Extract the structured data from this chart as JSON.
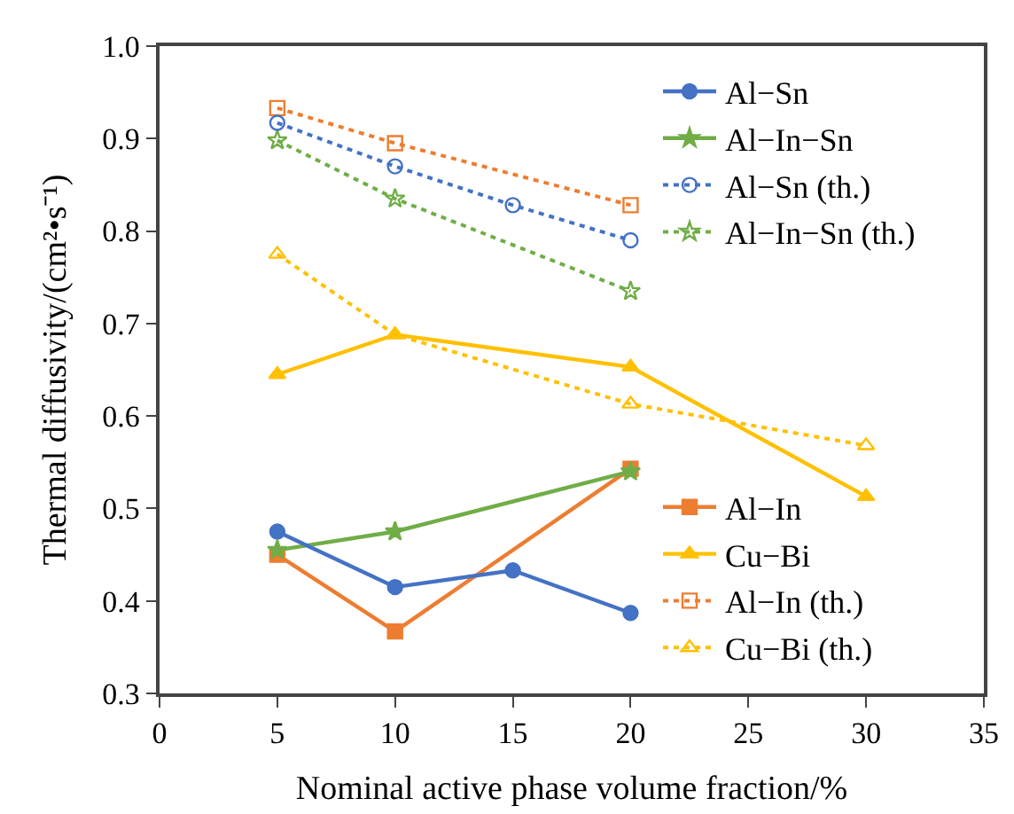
{
  "chart_data": {
    "type": "line",
    "xlabel": "Nominal active phase volume fraction/%",
    "ylabel": "Thermal diffusivity/(cm²•s⁻¹)",
    "xlim": [
      0,
      35
    ],
    "xticks": [
      0,
      5,
      10,
      15,
      20,
      25,
      30,
      35
    ],
    "ylim": [
      0.3,
      1.0
    ],
    "yticks": [
      0.3,
      0.4,
      0.5,
      0.6,
      0.7,
      0.8,
      0.9,
      {
        "value": 1.0,
        "label": "1.0"
      }
    ],
    "legend": "right",
    "series": [
      {
        "name": "Al−Sn",
        "color": "#4472c4",
        "marker": "circle",
        "line_style": "solid",
        "x": [
          5,
          10,
          15,
          20
        ],
        "values": [
          0.475,
          0.415,
          0.433,
          0.387
        ]
      },
      {
        "name": "Al−In−Sn",
        "color": "#70ad47",
        "marker": "star",
        "line_style": "solid",
        "x": [
          5,
          10,
          20
        ],
        "values": [
          0.455,
          0.475,
          0.54
        ]
      },
      {
        "name": "Al−Sn (th.)",
        "color": "#4472c4",
        "marker": "circle-open",
        "line_style": "dotted",
        "x": [
          5,
          10,
          15,
          20
        ],
        "values": [
          0.917,
          0.87,
          0.828,
          0.79
        ]
      },
      {
        "name": "Al−In−Sn (th.)",
        "color": "#70ad47",
        "marker": "star-open",
        "line_style": "dotted",
        "x": [
          5,
          10,
          20
        ],
        "values": [
          0.898,
          0.835,
          0.735
        ]
      },
      {
        "name": "Al−In",
        "color": "#ed7d31",
        "marker": "square",
        "line_style": "solid",
        "x": [
          5,
          10,
          20
        ],
        "values": [
          0.45,
          0.367,
          0.543
        ]
      },
      {
        "name": "Cu−Bi",
        "color": "#ffc000",
        "marker": "triangle",
        "line_style": "solid",
        "x": [
          5,
          10,
          20,
          30
        ],
        "values": [
          0.645,
          0.688,
          0.653,
          0.513
        ]
      },
      {
        "name": "Al−In (th.)",
        "color": "#ed7d31",
        "marker": "square-open",
        "line_style": "dotted",
        "x": [
          5,
          10,
          20
        ],
        "values": [
          0.933,
          0.895,
          0.828
        ]
      },
      {
        "name": "Cu−Bi (th.)",
        "color": "#ffc000",
        "marker": "triangle-open",
        "line_style": "dotted",
        "x": [
          5,
          10,
          20,
          30
        ],
        "values": [
          0.775,
          0.688,
          0.613,
          0.568
        ]
      }
    ]
  }
}
